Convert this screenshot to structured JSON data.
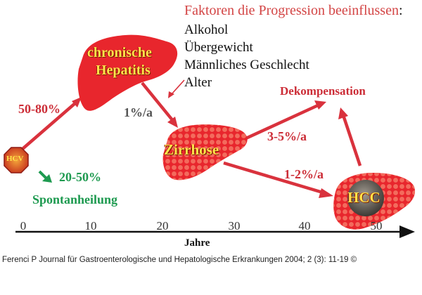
{
  "factors": {
    "title": "Faktoren die Progression beeinflussen",
    "colon": ":",
    "items": [
      "Alkohol",
      "Übergewicht",
      "Männliches Geschlecht",
      "Alter"
    ]
  },
  "nodes": {
    "hcv": "HCV",
    "chronic_line1": "chronische",
    "chronic_line2": "Hepatitis",
    "cirrhosis": "Zirrhose",
    "hcc": "HCC",
    "decompensation": "Dekompensation",
    "spontaneous": "Spontanheilung"
  },
  "rates": {
    "to_chronic": "50-80%",
    "spontaneous": "20-50%",
    "chronic_to_cirrhosis": "1%/a",
    "cirrhosis_to_decomp": "3-5%/a",
    "cirrhosis_to_hcc": "1-2%/a"
  },
  "axis": {
    "ticks": [
      "0",
      "10",
      "20",
      "30",
      "40",
      "50"
    ],
    "label": "Jahre"
  },
  "caption": "Ferenci P Journal für Gastroenterologische und Hepatologische Erkrankungen 2004; 2 (3): 11-19 ©",
  "colors": {
    "liver": "#e8262d",
    "liver_dots": "#f26a5c",
    "arrow": "#d9323d",
    "accent_green": "#1e9a50",
    "label_yellow": "#ffe44a"
  }
}
